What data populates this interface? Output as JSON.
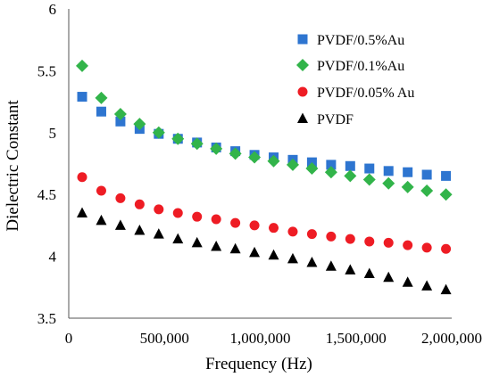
{
  "chart_data": {
    "type": "scatter",
    "title": "",
    "xlabel": "Frequency (Hz)",
    "ylabel": "Dielectric Constant",
    "xlim": [
      0,
      2000000
    ],
    "ylim": [
      3.5,
      6
    ],
    "grid": false,
    "legend_position": "top-right",
    "x_ticks": [
      0,
      500000,
      1000000,
      1500000,
      2000000
    ],
    "x_tick_labels": [
      "0",
      "500,000",
      "1,000,000",
      "1,500,000",
      "2,000,000"
    ],
    "y_ticks": [
      3.5,
      4,
      4.5,
      5,
      5.5,
      6
    ],
    "y_tick_labels": [
      "3.5",
      "4",
      "4.5",
      "5",
      "5.5",
      "6"
    ],
    "x": [
      70000,
      170000,
      270000,
      370000,
      470000,
      570000,
      670000,
      770000,
      870000,
      970000,
      1070000,
      1170000,
      1270000,
      1370000,
      1470000,
      1570000,
      1670000,
      1770000,
      1870000,
      1970000
    ],
    "series": [
      {
        "name": "PVDF/0.5%Au",
        "marker": "square",
        "color": "#2E75D0",
        "values": [
          5.29,
          5.17,
          5.09,
          5.03,
          4.99,
          4.95,
          4.92,
          4.88,
          4.85,
          4.82,
          4.8,
          4.78,
          4.76,
          4.74,
          4.73,
          4.71,
          4.69,
          4.68,
          4.66,
          4.65
        ]
      },
      {
        "name": "PVDF/0.1%Au",
        "marker": "diamond",
        "color": "#32B44A",
        "values": [
          5.54,
          5.28,
          5.15,
          5.07,
          5.0,
          4.95,
          4.91,
          4.87,
          4.83,
          4.8,
          4.77,
          4.74,
          4.71,
          4.68,
          4.65,
          4.62,
          4.59,
          4.56,
          4.53,
          4.5
        ]
      },
      {
        "name": "PVDF/0.05% Au",
        "marker": "circle",
        "color": "#EE1C24",
        "values": [
          4.64,
          4.53,
          4.47,
          4.42,
          4.38,
          4.35,
          4.32,
          4.3,
          4.27,
          4.25,
          4.23,
          4.2,
          4.18,
          4.16,
          4.14,
          4.12,
          4.11,
          4.09,
          4.07,
          4.06
        ]
      },
      {
        "name": "PVDF",
        "marker": "triangle",
        "color": "#000000",
        "values": [
          4.35,
          4.29,
          4.25,
          4.21,
          4.18,
          4.14,
          4.11,
          4.08,
          4.06,
          4.03,
          4.01,
          3.98,
          3.95,
          3.92,
          3.89,
          3.86,
          3.83,
          3.79,
          3.76,
          3.73
        ]
      }
    ]
  }
}
